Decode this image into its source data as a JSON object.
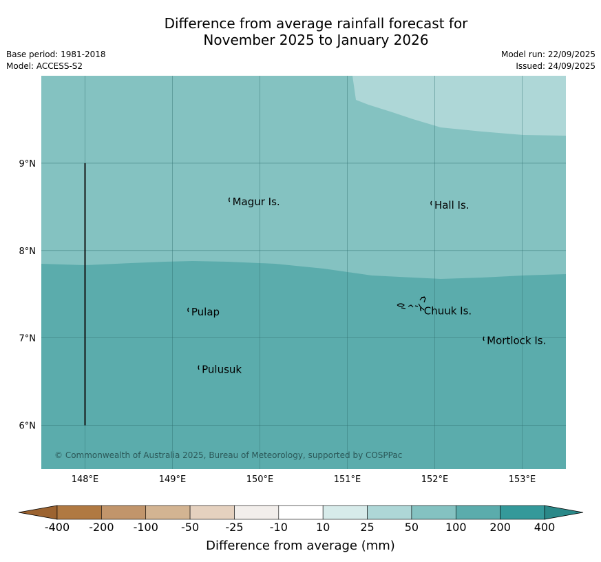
{
  "title": {
    "line1": "Difference from average rainfall forecast for",
    "line2": "November 2025 to January 2026"
  },
  "meta": {
    "base_period": "Base period: 1981-2018",
    "model": "Model: ACCESS-S2",
    "model_run": "Model run: 22/09/2025",
    "issued": "Issued: 24/09/2025"
  },
  "map": {
    "lon_range": [
      147.5,
      153.5
    ],
    "lat_range": [
      5.5,
      10.0
    ],
    "lon_ticks": [
      {
        "value": 148,
        "label": "148°E"
      },
      {
        "value": 149,
        "label": "149°E"
      },
      {
        "value": 150,
        "label": "150°E"
      },
      {
        "value": 151,
        "label": "151°E"
      },
      {
        "value": 152,
        "label": "152°E"
      },
      {
        "value": 153,
        "label": "153°E"
      }
    ],
    "lat_ticks": [
      {
        "value": 9,
        "label": "9°N"
      },
      {
        "value": 8,
        "label": "8°N"
      },
      {
        "value": 7,
        "label": "7°N"
      },
      {
        "value": 6,
        "label": "6°N"
      }
    ],
    "places": [
      {
        "name": "Magur Is.",
        "lon": 149.67,
        "lat": 8.55
      },
      {
        "name": "Hall Is.",
        "lon": 151.98,
        "lat": 8.51
      },
      {
        "name": "Pulap",
        "lon": 149.2,
        "lat": 7.29
      },
      {
        "name": "Chuuk Is.",
        "lon": 151.86,
        "lat": 7.3
      },
      {
        "name": "Mortlock Is.",
        "lon": 152.58,
        "lat": 6.96
      },
      {
        "name": "Pulusuk",
        "lon": 149.32,
        "lat": 6.63
      }
    ],
    "boundary_line": {
      "lon": 148.0,
      "lat_from": 6.0,
      "lat_to": 9.0
    },
    "zones": [
      {
        "range": "100 to 200",
        "color": "#5bacac"
      },
      {
        "range": "50 to 100",
        "color": "#84c2c1"
      },
      {
        "range": "25 to 50",
        "color": "#aed7d7"
      }
    ],
    "copyright": "© Commonwealth of Australia 2025, Bureau of Meteorology, supported by COSPPac"
  },
  "colorbar": {
    "title": "Difference from average (mm)",
    "labels": [
      "-400",
      "-200",
      "-100",
      "-50",
      "-25",
      "-10",
      "10",
      "25",
      "50",
      "100",
      "200",
      "400"
    ],
    "colors": [
      "#b07942",
      "#c1956b",
      "#d3b492",
      "#e5d1bf",
      "#f2eeeb",
      "#ffffff",
      "#d7ebea",
      "#aed7d7",
      "#84c2c1",
      "#5bacac",
      "#34999a"
    ],
    "under_color": "#9c6330",
    "over_color": "#2a8888"
  }
}
